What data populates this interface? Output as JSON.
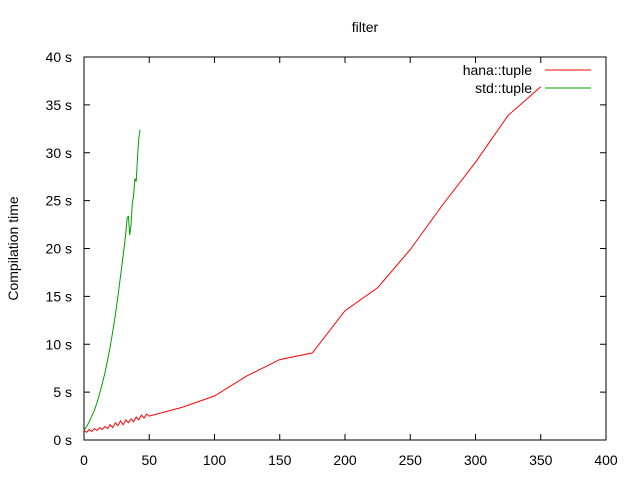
{
  "chart_data": {
    "type": "line",
    "title": "filter",
    "xlabel": "",
    "ylabel": "Compilation time",
    "xlim": [
      0,
      400
    ],
    "ylim": [
      0,
      40
    ],
    "x_ticks": [
      0,
      50,
      100,
      150,
      200,
      250,
      300,
      350,
      400
    ],
    "x_tick_labels": [
      "0",
      "50",
      "100",
      "150",
      "200",
      "250",
      "300",
      "350",
      "400"
    ],
    "y_ticks": [
      0,
      5,
      10,
      15,
      20,
      25,
      30,
      35,
      40
    ],
    "y_tick_labels": [
      "0 s",
      "5 s",
      "10 s",
      "15 s",
      "20 s",
      "25 s",
      "30 s",
      "35 s",
      "40 s"
    ],
    "grid": false,
    "legend_position": "top-right",
    "series": [
      {
        "name": "hana::tuple",
        "color": "#ff0000",
        "x": [
          0,
          2,
          4,
          6,
          8,
          10,
          12,
          14,
          16,
          18,
          20,
          22,
          24,
          26,
          28,
          30,
          32,
          34,
          36,
          38,
          40,
          42,
          44,
          46,
          48,
          50,
          75,
          100,
          125,
          150,
          175,
          200,
          225,
          250,
          275,
          300,
          325,
          350
        ],
        "y": [
          1.0,
          0.8,
          1.1,
          0.9,
          1.2,
          1.0,
          1.3,
          1.1,
          1.4,
          1.2,
          1.6,
          1.3,
          1.8,
          1.5,
          2.0,
          1.6,
          2.1,
          1.8,
          2.2,
          1.9,
          2.4,
          2.1,
          2.6,
          2.3,
          2.7,
          2.5,
          3.4,
          4.6,
          6.7,
          8.4,
          9.1,
          13.5,
          15.9,
          19.9,
          24.6,
          29.0,
          33.9,
          36.9
        ]
      },
      {
        "name": "std::tuple",
        "color": "#00a000",
        "x": [
          0,
          2,
          4,
          6,
          8,
          10,
          12,
          14,
          16,
          18,
          20,
          22,
          24,
          26,
          28,
          30,
          32,
          33,
          34,
          35,
          36,
          37,
          38,
          39,
          40,
          41,
          42,
          43
        ],
        "y": [
          1.0,
          1.4,
          1.9,
          2.5,
          3.1,
          3.9,
          4.9,
          5.9,
          7.0,
          8.3,
          9.7,
          11.3,
          13.0,
          15.0,
          17.1,
          19.3,
          21.6,
          23.1,
          23.4,
          21.4,
          22.4,
          24.7,
          25.5,
          27.3,
          27.0,
          29.5,
          31.5,
          32.4
        ]
      }
    ]
  }
}
